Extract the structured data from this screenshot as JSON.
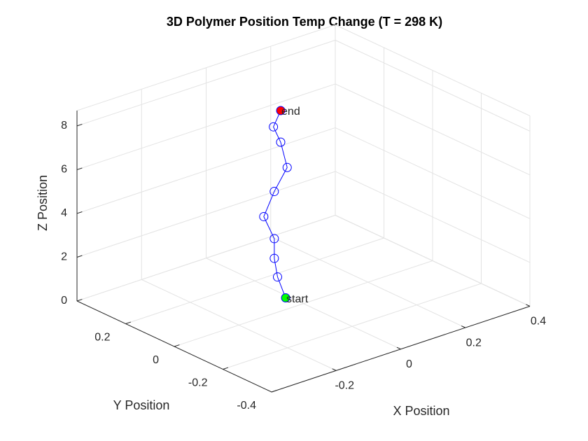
{
  "chart_data": {
    "type": "line3d",
    "title": "3D Polymer Position Temp Change (T = 298 K)",
    "xlabel": "X Position",
    "ylabel": "Y Position",
    "zlabel": "Z Position",
    "xlim": [
      -0.4,
      0.4
    ],
    "ylim": [
      -0.4,
      0.4
    ],
    "zlim": [
      0,
      8.7
    ],
    "xticks": [
      -0.2,
      0,
      0.2,
      0.4
    ],
    "yticks": [
      -0.4,
      -0.2,
      0,
      0.2
    ],
    "zticks": [
      0,
      2,
      4,
      6,
      8
    ],
    "grid": true,
    "series": [
      {
        "color": "#0000ff",
        "x": [
          -0.01,
          -0.02,
          -0.03,
          -0.03,
          -0.04,
          0.0,
          0.04,
          0.05,
          0.02,
          0.02
        ],
        "y": [
          0.06,
          0.08,
          0.08,
          0.08,
          0.11,
          0.12,
          0.12,
          0.16,
          0.15,
          0.12
        ],
        "z": [
          0,
          0.9,
          1.8,
          2.7,
          3.6,
          4.5,
          5.4,
          6.3,
          7.2,
          8.1
        ]
      }
    ],
    "start_label": "start",
    "end_label": "end",
    "start_color": "#00ff00",
    "end_color": "#ff0000"
  }
}
